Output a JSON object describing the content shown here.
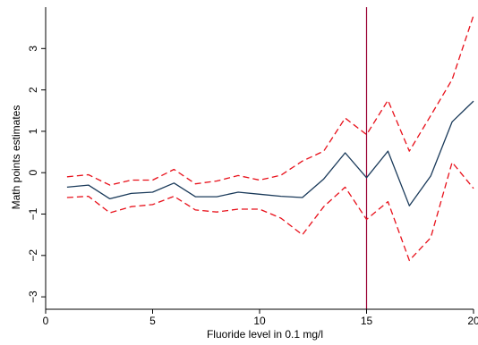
{
  "chart_data": {
    "type": "line",
    "title": "",
    "xlabel": "Fluoride level in 0.1 mg/l",
    "ylabel": "Math points estimates",
    "xlim": [
      0,
      20
    ],
    "ylim": [
      -3.3,
      4.0
    ],
    "xticks": [
      0,
      5,
      10,
      15,
      20
    ],
    "yticks": [
      -3,
      -2,
      -1,
      0,
      1,
      2,
      3
    ],
    "grid": false,
    "legend": "none",
    "reference_line": {
      "x": 15,
      "color": "#990033"
    },
    "series": [
      {
        "role": "estimate",
        "color": "#1a3a5a",
        "dash": "solid",
        "x": [
          1,
          2,
          3,
          4,
          5,
          6,
          7,
          8,
          9,
          10,
          11,
          12,
          13,
          14,
          15,
          16,
          17,
          18,
          19,
          20
        ],
        "y": [
          -0.35,
          -0.3,
          -0.63,
          -0.5,
          -0.47,
          -0.25,
          -0.58,
          -0.58,
          -0.47,
          -0.52,
          -0.57,
          -0.6,
          -0.15,
          0.48,
          -0.12,
          0.52,
          -0.8,
          -0.08,
          1.23,
          1.73
        ]
      },
      {
        "role": "upper-ci",
        "color": "#e8101a",
        "dash": "dashed",
        "x": [
          1,
          2,
          3,
          4,
          5,
          6,
          7,
          8,
          9,
          10,
          11,
          12,
          13,
          14,
          15,
          16,
          17,
          18,
          19,
          20
        ],
        "y": [
          -0.1,
          -0.05,
          -0.3,
          -0.18,
          -0.18,
          0.08,
          -0.27,
          -0.2,
          -0.07,
          -0.18,
          -0.06,
          0.28,
          0.52,
          1.32,
          0.92,
          1.75,
          0.52,
          1.38,
          2.25,
          3.8
        ]
      },
      {
        "role": "lower-ci",
        "color": "#e8101a",
        "dash": "dashed",
        "x": [
          1,
          2,
          3,
          4,
          5,
          6,
          7,
          8,
          9,
          10,
          11,
          12,
          13,
          14,
          15,
          16,
          17,
          18,
          19,
          20
        ],
        "y": [
          -0.6,
          -0.57,
          -0.97,
          -0.82,
          -0.77,
          -0.57,
          -0.9,
          -0.95,
          -0.88,
          -0.88,
          -1.1,
          -1.5,
          -0.82,
          -0.35,
          -1.13,
          -0.7,
          -2.12,
          -1.57,
          0.25,
          -0.38
        ]
      }
    ]
  }
}
